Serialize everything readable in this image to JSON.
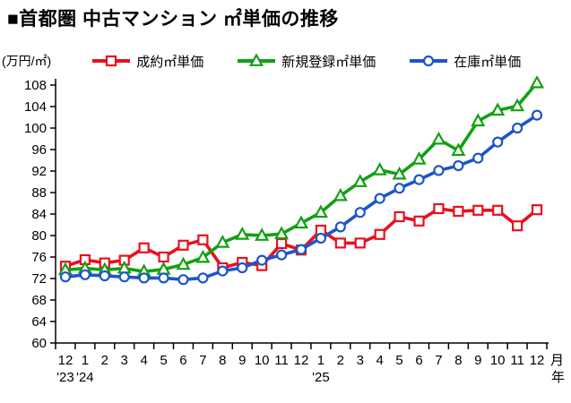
{
  "title": "■首都圏 中古マンション ㎡単価の推移",
  "y_axis_unit": "(万円/㎡)",
  "chart_data": {
    "type": "line",
    "title": "首都圏 中古マンション ㎡単価の推移",
    "ylabel": "万円/㎡",
    "ylim": [
      60,
      108
    ],
    "ytick_step": 4,
    "yticks": [
      60,
      64,
      68,
      72,
      76,
      80,
      84,
      88,
      92,
      96,
      100,
      104,
      108
    ],
    "grid": false,
    "legend_position": "top",
    "x_months": [
      "12",
      "1",
      "2",
      "3",
      "4",
      "5",
      "6",
      "7",
      "8",
      "9",
      "10",
      "11",
      "12",
      "1",
      "2",
      "3",
      "4",
      "5",
      "6",
      "7",
      "8",
      "9",
      "10",
      "11",
      "12"
    ],
    "x_month_suffix": "月",
    "x_year_suffix": "年",
    "year_markers": [
      {
        "index": 0,
        "label": "'23"
      },
      {
        "index": 1,
        "label": "'24"
      },
      {
        "index": 13,
        "label": "'25"
      }
    ],
    "series": [
      {
        "name": "成約㎡単価",
        "marker": "square",
        "color": "#e8101e",
        "values": [
          74.3,
          75.5,
          74.9,
          75.4,
          77.7,
          76.0,
          78.2,
          79.2,
          74.0,
          75.0,
          74.4,
          78.5,
          77.3,
          81.0,
          78.6,
          78.6,
          80.2,
          83.5,
          82.7,
          85.0,
          84.5,
          84.7,
          84.7,
          81.8,
          84.8
        ]
      },
      {
        "name": "新規登録㎡単価",
        "marker": "triangle",
        "color": "#13a013",
        "values": [
          73.6,
          73.9,
          73.6,
          73.9,
          73.3,
          73.7,
          74.6,
          75.9,
          78.7,
          80.2,
          80.0,
          80.3,
          82.3,
          84.3,
          87.4,
          90.0,
          92.2,
          91.4,
          94.2,
          97.9,
          95.8,
          101.3,
          103.3,
          104.1,
          108.4
        ]
      },
      {
        "name": "在庫㎡単価",
        "marker": "circle",
        "color": "#1c56c8",
        "values": [
          72.3,
          72.7,
          72.5,
          72.3,
          72.1,
          72.1,
          71.8,
          72.1,
          73.4,
          74.0,
          75.4,
          76.4,
          77.4,
          79.5,
          81.6,
          84.3,
          86.9,
          88.8,
          90.4,
          92.1,
          93.0,
          94.4,
          97.4,
          100.0,
          102.4
        ]
      }
    ]
  }
}
